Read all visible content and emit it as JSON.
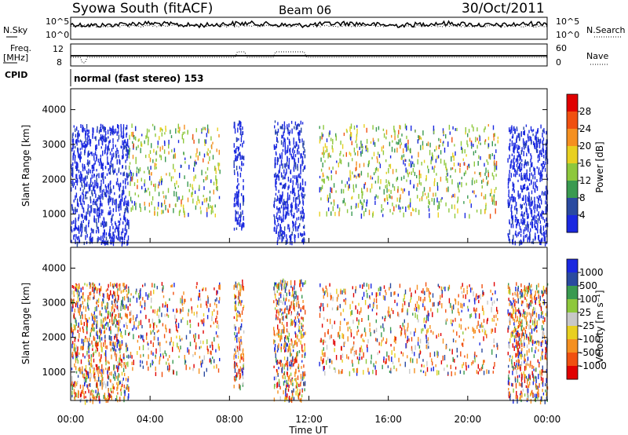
{
  "header": {
    "station": "Syowa South (fitACF)",
    "beam": "Beam 06",
    "date": "30/Oct/2011"
  },
  "noise_panel": {
    "left_label": "N.Sky",
    "left_ticks": [
      "10^5",
      "10^0"
    ],
    "right_label": "N.Search",
    "right_ticks": [
      "10^5",
      "10^0"
    ]
  },
  "freq_panel": {
    "left_label_1": "Freq.",
    "left_label_2": "[MHz]",
    "left_ticks": [
      "12",
      "8"
    ],
    "right_label": "Nave",
    "right_ticks": [
      "60",
      "0"
    ]
  },
  "cpid_panel": {
    "label": "CPID",
    "text": "normal (fast stereo) 153"
  },
  "colorbars": {
    "power": {
      "title": "Power [dB]",
      "ticks": [
        "28",
        "24",
        "20",
        "16",
        "12",
        "8",
        "4"
      ],
      "colors": [
        "#e00000",
        "#f05010",
        "#f59020",
        "#e8d020",
        "#8ec83c",
        "#3a9a50",
        "#2a4aa0",
        "#1a28e0"
      ]
    },
    "velocity": {
      "title": "Velocity [m s⁻¹]",
      "ticks": [
        "1000",
        "500",
        "100",
        "25",
        "-25",
        "-100",
        "-500",
        "-1000"
      ],
      "colors": [
        "#1a28e0",
        "#2a4aa0",
        "#3a9a50",
        "#8ec83c",
        "#c8c8c8",
        "#e8d020",
        "#f59020",
        "#f05010",
        "#e00000"
      ]
    }
  },
  "chart_data": [
    {
      "type": "heatmap",
      "title": "",
      "xlabel": "Time UT",
      "ylabel": "Slant Range [km]",
      "x_ticks": [
        "00:00",
        "04:00",
        "08:00",
        "12:00",
        "16:00",
        "20:00",
        "00:00"
      ],
      "y_ticks": [
        "1000",
        "2000",
        "3000",
        "4000"
      ],
      "xlim": [
        0,
        24
      ],
      "ylim": [
        180,
        4600
      ],
      "quantity": "Power [dB]",
      "value_range": [
        0,
        30
      ],
      "regions": [
        {
          "x": [
            0.0,
            2.9
          ],
          "y": [
            200,
            3600
          ],
          "level": "low"
        },
        {
          "x": [
            2.9,
            7.5
          ],
          "y": [
            1000,
            3600
          ],
          "level": "mid"
        },
        {
          "x": [
            8.2,
            8.7
          ],
          "y": [
            600,
            3700
          ],
          "level": "low"
        },
        {
          "x": [
            10.2,
            11.8
          ],
          "y": [
            200,
            3700
          ],
          "level": "low"
        },
        {
          "x": [
            12.5,
            21.5
          ],
          "y": [
            1000,
            3600
          ],
          "level": "mid"
        },
        {
          "x": [
            22.0,
            24.0
          ],
          "y": [
            200,
            3600
          ],
          "level": "low"
        }
      ]
    },
    {
      "type": "heatmap",
      "title": "",
      "xlabel": "Time UT",
      "ylabel": "Slant Range [km]",
      "x_ticks": [
        "00:00",
        "04:00",
        "08:00",
        "12:00",
        "16:00",
        "20:00",
        "00:00"
      ],
      "y_ticks": [
        "1000",
        "2000",
        "3000",
        "4000"
      ],
      "xlim": [
        0,
        24
      ],
      "ylim": [
        180,
        4600
      ],
      "quantity": "Velocity [m s⁻¹]",
      "value_range": [
        -1000,
        1000
      ]
    }
  ],
  "x_axis": {
    "label": "Time UT",
    "ticks": [
      "00:00",
      "04:00",
      "08:00",
      "12:00",
      "16:00",
      "20:00",
      "00:00"
    ]
  }
}
